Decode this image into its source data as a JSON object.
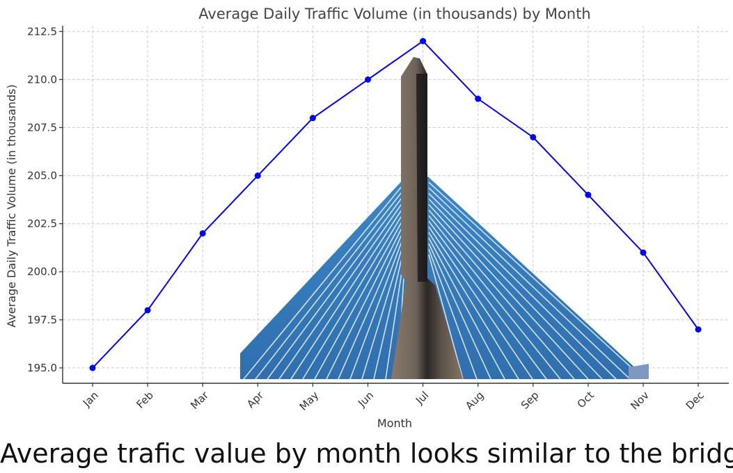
{
  "chart_data": {
    "type": "line",
    "title": "Average Daily Traffic Volume (in thousands) by Month",
    "xlabel": "Month",
    "ylabel": "Average Daily Traffic Volume (in thousands)",
    "categories": [
      "Jan",
      "Feb",
      "Mar",
      "Apr",
      "May",
      "Jun",
      "Jul",
      "Aug",
      "Sep",
      "Oct",
      "Nov",
      "Dec"
    ],
    "values": [
      195,
      198,
      202,
      205,
      208,
      210,
      212,
      209,
      207,
      204,
      201,
      197
    ],
    "yticks": [
      "195.0",
      "197.5",
      "200.0",
      "202.5",
      "205.0",
      "207.5",
      "210.0",
      "212.5"
    ],
    "ylim": [
      194.2,
      212.8
    ],
    "grid": true,
    "line_color": "#0000ff"
  },
  "caption": "Average trafic value by month looks similar to the bridge",
  "overlay_image": "cable-stayed bridge tower"
}
